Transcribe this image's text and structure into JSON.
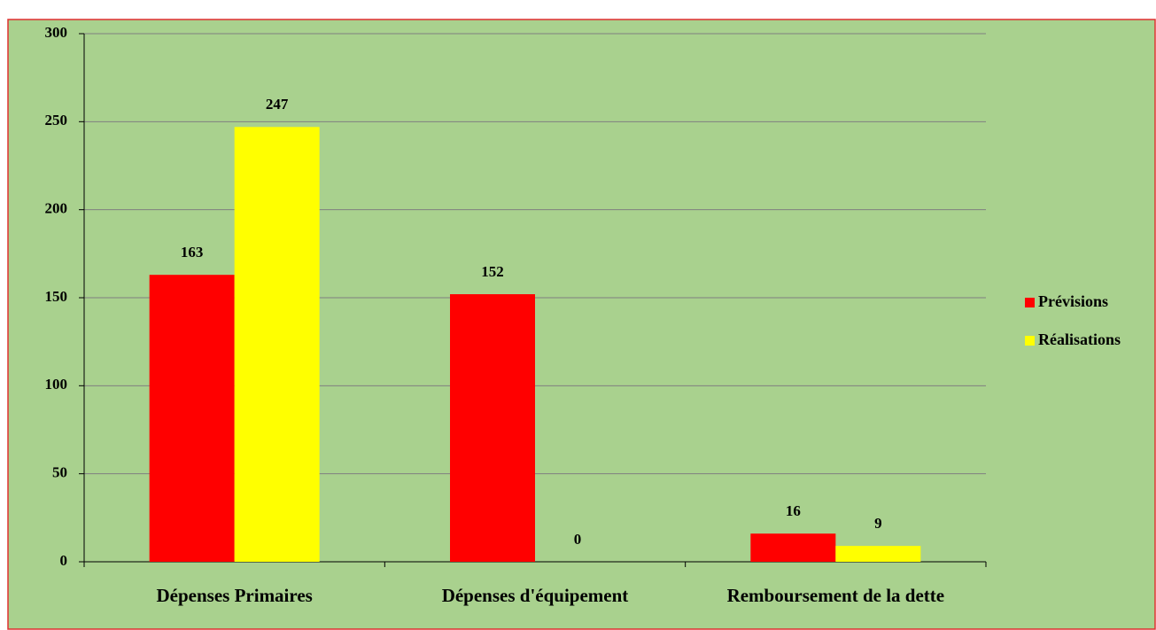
{
  "chart_data": {
    "type": "bar",
    "categories": [
      "Dépenses Primaires",
      "Dépenses d'équipement",
      "Remboursement de la dette"
    ],
    "series": [
      {
        "name": "Prévisions",
        "color": "#ff0000",
        "values": [
          163,
          152,
          16
        ]
      },
      {
        "name": "Réalisations",
        "color": "#ffff00",
        "values": [
          247,
          0,
          9
        ]
      }
    ],
    "ylim": [
      0,
      300
    ],
    "yticks": [
      0,
      50,
      100,
      150,
      200,
      250,
      300
    ],
    "grid": true,
    "legend": "right"
  }
}
